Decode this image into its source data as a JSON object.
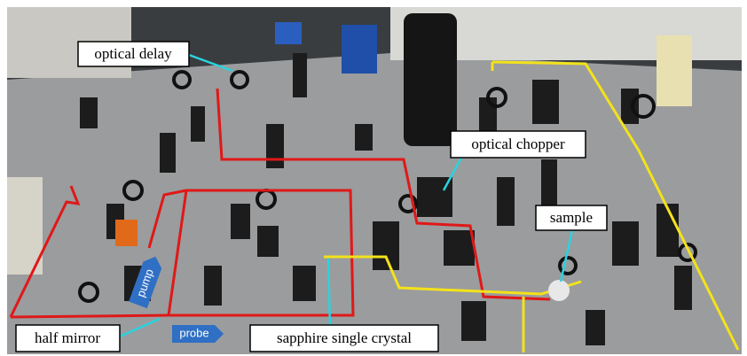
{
  "annotations": [
    {
      "text": "optical delay"
    },
    {
      "text": "optical chopper"
    },
    {
      "text": "sample"
    },
    {
      "text": "half mirror"
    },
    {
      "text": "sapphire single crystal"
    }
  ],
  "beam_tags": [
    {
      "text": "pump"
    },
    {
      "text": "probe"
    }
  ]
}
